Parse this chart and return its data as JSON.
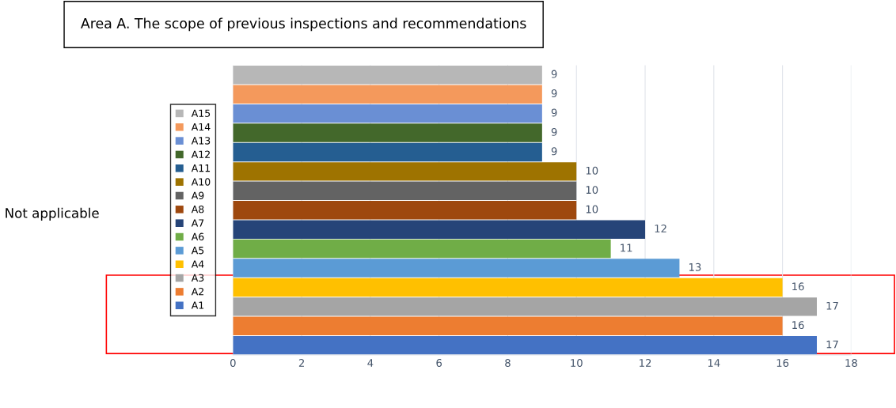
{
  "chart_data": {
    "type": "bar",
    "orientation": "horizontal",
    "title": "Area A. The scope of previous inspections and recommendations",
    "categories": [
      null,
      null,
      null,
      null,
      null,
      null,
      null,
      null,
      null,
      null,
      null,
      null,
      null,
      null,
      null
    ],
    "series": [
      {
        "name": "A15",
        "color": "#b7b7b7",
        "values": [
          9,
          null,
          null,
          null,
          null,
          null,
          null,
          null,
          null,
          null,
          null,
          null,
          null,
          null,
          null
        ]
      },
      {
        "name": "A14",
        "color": "#f4995c",
        "values": [
          null,
          9,
          null,
          null,
          null,
          null,
          null,
          null,
          null,
          null,
          null,
          null,
          null,
          null,
          null
        ]
      },
      {
        "name": "A13",
        "color": "#6a8fd4",
        "values": [
          null,
          null,
          9,
          null,
          null,
          null,
          null,
          null,
          null,
          null,
          null,
          null,
          null,
          null,
          null
        ]
      },
      {
        "name": "A12",
        "color": "#43682b",
        "values": [
          null,
          null,
          null,
          9,
          null,
          null,
          null,
          null,
          null,
          null,
          null,
          null,
          null,
          null,
          null
        ]
      },
      {
        "name": "A11",
        "color": "#255e91",
        "values": [
          null,
          null,
          null,
          null,
          9,
          null,
          null,
          null,
          null,
          null,
          null,
          null,
          null,
          null,
          null
        ]
      },
      {
        "name": "A10",
        "color": "#9e7300",
        "values": [
          null,
          null,
          null,
          null,
          null,
          10,
          null,
          null,
          null,
          null,
          null,
          null,
          null,
          null,
          null
        ]
      },
      {
        "name": "A9",
        "color": "#636363",
        "values": [
          null,
          null,
          null,
          null,
          null,
          null,
          10,
          null,
          null,
          null,
          null,
          null,
          null,
          null,
          null
        ]
      },
      {
        "name": "A8",
        "color": "#9e480e",
        "values": [
          null,
          null,
          null,
          null,
          null,
          null,
          null,
          10,
          null,
          null,
          null,
          null,
          null,
          null,
          null
        ]
      },
      {
        "name": "A7",
        "color": "#264478",
        "values": [
          null,
          null,
          null,
          null,
          null,
          null,
          null,
          null,
          12,
          null,
          null,
          null,
          null,
          null,
          null
        ]
      },
      {
        "name": "A6",
        "color": "#70ad47",
        "values": [
          null,
          null,
          null,
          null,
          null,
          null,
          null,
          null,
          null,
          11,
          null,
          null,
          null,
          null,
          null
        ]
      },
      {
        "name": "A5",
        "color": "#5b9bd5",
        "values": [
          null,
          null,
          null,
          null,
          null,
          null,
          null,
          null,
          null,
          null,
          13,
          null,
          null,
          null,
          null
        ]
      },
      {
        "name": "A4",
        "color": "#ffc000",
        "values": [
          null,
          null,
          null,
          null,
          null,
          null,
          null,
          null,
          null,
          null,
          null,
          16,
          null,
          null,
          null
        ]
      },
      {
        "name": "A3",
        "color": "#a5a5a5",
        "values": [
          null,
          null,
          null,
          null,
          null,
          null,
          null,
          null,
          null,
          null,
          null,
          null,
          17,
          null,
          null
        ]
      },
      {
        "name": "A2",
        "color": "#ed7d31",
        "values": [
          null,
          null,
          null,
          null,
          null,
          null,
          null,
          null,
          null,
          null,
          null,
          null,
          null,
          16,
          null
        ]
      },
      {
        "name": "A1",
        "color": "#4472c4",
        "values": [
          null,
          null,
          null,
          null,
          null,
          null,
          null,
          null,
          null,
          null,
          null,
          null,
          null,
          null,
          17
        ]
      }
    ],
    "xlim": [
      0,
      18
    ],
    "xticks": [
      0,
      2,
      4,
      6,
      8,
      10,
      12,
      14,
      16,
      18
    ],
    "grid": "x",
    "legend": "left",
    "tick_labels": "x",
    "data_labels": true,
    "annotations": [
      "Not applicable"
    ]
  }
}
